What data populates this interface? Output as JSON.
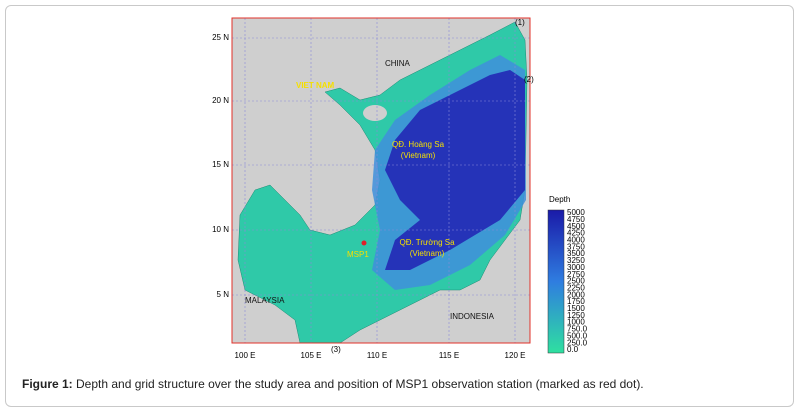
{
  "figure": {
    "map": {
      "yticks": [
        "25 N",
        "20 N",
        "15 N",
        "10 N",
        "5 N"
      ],
      "xticks": [
        "100 E",
        "105 E",
        "110 E",
        "115 E",
        "120 E"
      ],
      "points": [
        "(1)",
        "(2)",
        "(3)"
      ],
      "labels": {
        "china": "CHINA",
        "vietnam": "VIET NAM",
        "hoang_sa": [
          "QĐ. Hoàng Sa",
          "(Vietnam)"
        ],
        "truong_sa": [
          "QĐ. Trường Sa",
          "(Vietnam)"
        ],
        "station": "MSP1",
        "malaysia": "MALAYSIA",
        "indonesia": "INDONESIA"
      }
    },
    "legend": {
      "title": "Depth",
      "labels": [
        "5000",
        "4750",
        "4500",
        "4250",
        "4000",
        "3750",
        "3500",
        "3250",
        "3000",
        "2750",
        "2500",
        "2250",
        "2000",
        "1750",
        "1500",
        "1250",
        "1000",
        "750.0",
        "500.0",
        "250.0",
        "0.0"
      ]
    },
    "caption": {
      "label": "Figure 1:",
      "text": " Depth and grid structure over the study area and position of MSP1 observation station (marked as red dot)."
    }
  }
}
